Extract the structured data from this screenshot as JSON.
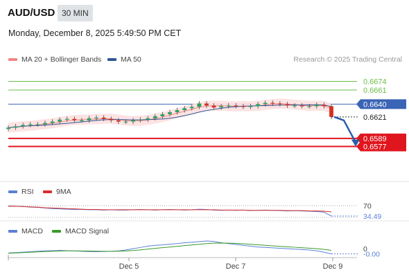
{
  "header": {
    "pair": "AUD/USD",
    "timeframe": "30 MIN",
    "datetime": "Monday, December 8, 2025 5:49:50 PM CET"
  },
  "legend": {
    "ma20_bb": "MA 20 + Bollinger Bands",
    "ma50": "MA 50",
    "credit": "Research © 2025 Trading Central"
  },
  "indicator_legend": {
    "rsi": "RSI",
    "rsi_ma": "9MA",
    "macd": "MACD",
    "macd_signal": "MACD Signal"
  },
  "colors": {
    "resistance": "#6abf45",
    "pivot": "#3a64b5",
    "support": "#e0161e",
    "arrow": "#2a5caa",
    "ma20": "#f08585",
    "ma50": "#2f5597",
    "bollinger_fill": "#fde0e0",
    "bull_candle": "#2ca25f",
    "bear_candle": "#d7301f",
    "rsi": "#5b7fd6",
    "rsi_ma": "#d92b2b",
    "macd": "#5b7fd6",
    "macd_signal": "#3a9a2a"
  },
  "chart_data": [
    {
      "type": "candlestick",
      "title": "AUD/USD",
      "timeframe": "30 MIN",
      "x_ticks": [
        "Dec 5",
        "Dec 7",
        "Dec 9"
      ],
      "ylim": [
        0.657,
        0.6683
      ],
      "current_price": {
        "value": 0.6621,
        "label": "0.6621"
      },
      "levels": [
        {
          "value": 0.6674,
          "label": "0.6674",
          "kind": "resistance"
        },
        {
          "value": 0.6661,
          "label": "0.6661",
          "kind": "resistance"
        },
        {
          "value": 0.664,
          "label": "0.6640",
          "kind": "pivot"
        },
        {
          "value": 0.6589,
          "label": "0.6589",
          "kind": "support"
        },
        {
          "value": 0.6577,
          "label": "0.6577",
          "kind": "support"
        }
      ],
      "close_series": [
        0.6605,
        0.6607,
        0.6609,
        0.661,
        0.661,
        0.6612,
        0.6614,
        0.6617,
        0.6618,
        0.6616,
        0.6616,
        0.6619,
        0.662,
        0.6618,
        0.6616,
        0.6614,
        0.6614,
        0.6616,
        0.6617,
        0.6619,
        0.6622,
        0.6625,
        0.6628,
        0.6631,
        0.6634,
        0.6636,
        0.6641,
        0.6638,
        0.6635,
        0.6637,
        0.6638,
        0.6637,
        0.6636,
        0.6637,
        0.664,
        0.6642,
        0.6641,
        0.664,
        0.6638,
        0.6638,
        0.6637,
        0.6637,
        0.6639,
        0.6637,
        0.6621
      ],
      "forecast": {
        "from": 0.6621,
        "to": 0.6583
      }
    },
    {
      "type": "line",
      "title": "RSI",
      "series": [
        {
          "name": "RSI",
          "values": [
            69,
            68,
            67,
            65,
            64,
            62,
            60,
            59,
            58,
            57,
            57,
            56,
            56,
            55,
            56,
            55,
            55,
            56,
            57,
            56,
            55,
            56,
            57,
            56,
            55,
            56,
            58,
            57,
            55,
            54,
            55,
            54,
            55,
            53,
            54,
            55,
            54,
            53,
            52,
            53,
            52,
            51,
            50,
            48,
            34.49
          ]
        },
        {
          "name": "9MA",
          "values": [
            68,
            68,
            67,
            66,
            65,
            63,
            62,
            61,
            60,
            59,
            58,
            57,
            57,
            56,
            56,
            56,
            56,
            56,
            56,
            56,
            56,
            56,
            56,
            56,
            56,
            56,
            56,
            56,
            56,
            55,
            55,
            55,
            55,
            54,
            54,
            54,
            54,
            54,
            53,
            53,
            53,
            52,
            52,
            51,
            49
          ]
        }
      ],
      "ref_levels": [
        {
          "value": 70,
          "label": "70"
        },
        {
          "value": 30,
          "label": ""
        }
      ],
      "current_label": "34.49"
    },
    {
      "type": "line",
      "title": "MACD",
      "series": [
        {
          "name": "MACD",
          "values": [
            0.0001,
            0.0002,
            0.0003,
            0.0004,
            0.0005,
            0.0006,
            0.00065,
            0.0007,
            0.00065,
            0.0006,
            0.0005,
            0.00045,
            0.0004,
            0.00045,
            0.0005,
            0.0006,
            0.0008,
            0.0011,
            0.0014,
            0.0017,
            0.0019,
            0.002,
            0.00215,
            0.0023,
            0.0025,
            0.0026,
            0.00275,
            0.0029,
            0.0028,
            0.0025,
            0.0023,
            0.0021,
            0.0019,
            0.0017,
            0.0015,
            0.0014,
            0.0013,
            0.0012,
            0.0011,
            0.001,
            0.0009,
            0.0008,
            0.0006,
            0.0003,
            -0.0001
          ]
        },
        {
          "name": "MACD Signal",
          "values": [
            5e-05,
            0.00012,
            0.0002,
            0.00028,
            0.00036,
            0.00044,
            0.00051,
            0.00057,
            0.0006,
            0.00061,
            0.00059,
            0.00056,
            0.00053,
            0.00051,
            0.00051,
            0.00053,
            0.00058,
            0.00068,
            0.00082,
            0.001,
            0.00118,
            0.00135,
            0.0015,
            0.00166,
            0.00183,
            0.00198,
            0.00213,
            0.00229,
            0.0024,
            0.00242,
            0.0024,
            0.00234,
            0.00225,
            0.00214,
            0.00201,
            0.00189,
            0.00177,
            0.00166,
            0.00155,
            0.00144,
            0.00133,
            0.00122,
            0.0011,
            0.00094,
            0.00073
          ]
        }
      ],
      "ref_levels": [
        {
          "value": 0,
          "label": "0"
        }
      ],
      "current_label": "-0.00"
    }
  ]
}
